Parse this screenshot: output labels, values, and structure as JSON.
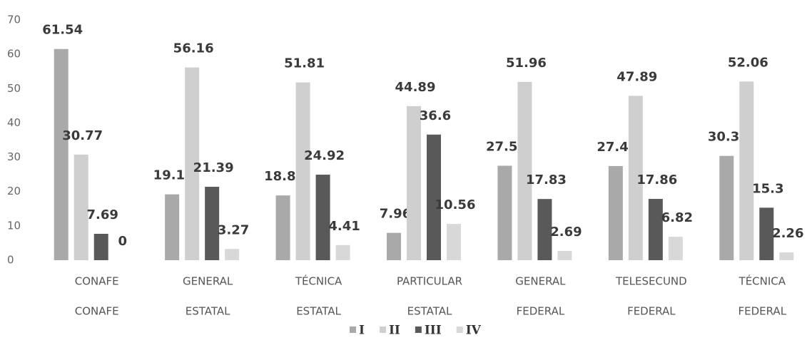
{
  "chart_data": {
    "type": "bar",
    "categories": [
      [
        "CONAFE",
        "CONAFE"
      ],
      [
        "GENERAL",
        "ESTATAL"
      ],
      [
        "TÉCNICA",
        "ESTATAL"
      ],
      [
        "PARTICULAR",
        "ESTATAL"
      ],
      [
        "GENERAL",
        "FEDERAL"
      ],
      [
        "TELESECUND",
        "FEDERAL"
      ],
      [
        "TÉCNICA",
        "FEDERAL"
      ]
    ],
    "series": [
      {
        "name": "I",
        "color": "#a9a9a9",
        "values": [
          61.54,
          19.19,
          18.87,
          7.96,
          27.52,
          27.44,
          30.39
        ]
      },
      {
        "name": "II",
        "color": "#cfcfcf",
        "values": [
          30.77,
          56.16,
          51.81,
          44.89,
          51.96,
          47.89,
          52.06
        ]
      },
      {
        "name": "III",
        "color": "#595959",
        "values": [
          7.69,
          21.39,
          24.92,
          36.6,
          17.83,
          17.86,
          15.3
        ]
      },
      {
        "name": "IV",
        "color": "#d8d8d8",
        "values": [
          0,
          3.27,
          4.41,
          10.56,
          2.69,
          6.82,
          2.26
        ]
      }
    ],
    "ylim": [
      0,
      70
    ],
    "yticks": [
      0,
      10,
      20,
      30,
      40,
      50,
      60,
      70
    ],
    "grid": false,
    "legend": "bottom"
  }
}
